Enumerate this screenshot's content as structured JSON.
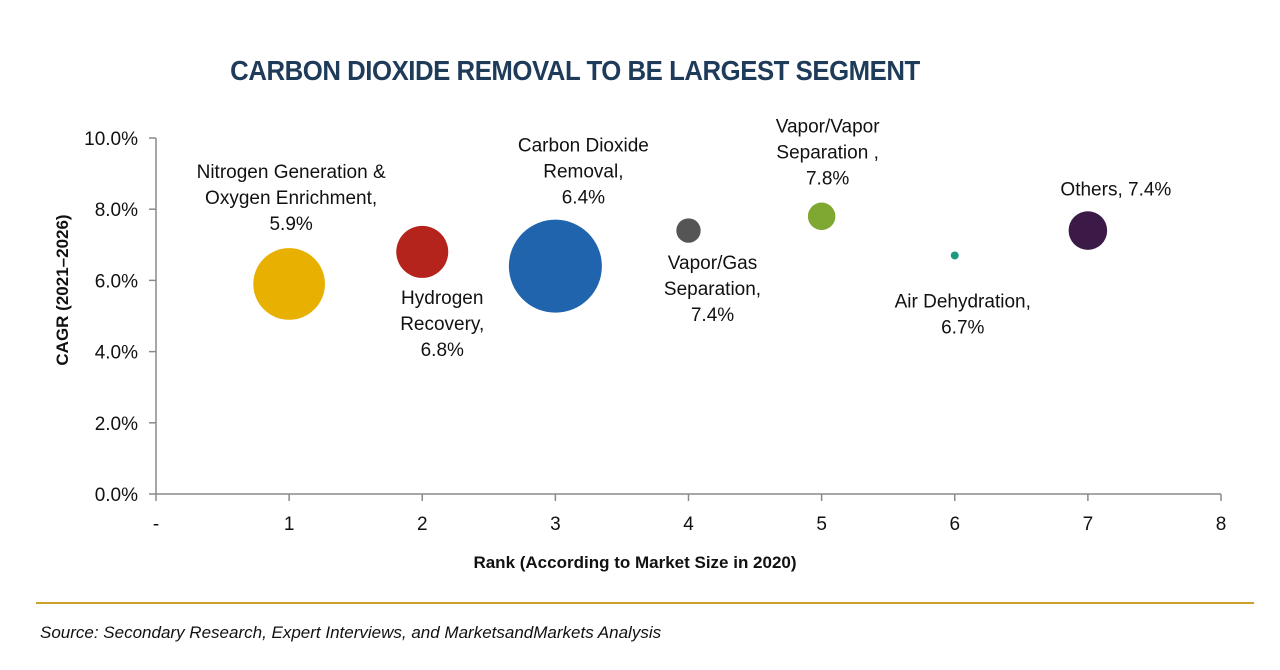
{
  "chart_data": {
    "type": "bubble",
    "title": "CARBON DIOXIDE REMOVAL TO BE LARGEST SEGMENT",
    "xlabel": "Rank (According to Market Size in 2020)",
    "ylabel": "CAGR (2021–2026)",
    "xlim": [
      0,
      8
    ],
    "ylim": [
      0,
      10
    ],
    "x_ticks": [
      {
        "value": 0,
        "label": "-"
      },
      {
        "value": 1,
        "label": "1"
      },
      {
        "value": 2,
        "label": "2"
      },
      {
        "value": 3,
        "label": "3"
      },
      {
        "value": 4,
        "label": "4"
      },
      {
        "value": 5,
        "label": "5"
      },
      {
        "value": 6,
        "label": "6"
      },
      {
        "value": 7,
        "label": "7"
      },
      {
        "value": 8,
        "label": "8"
      }
    ],
    "y_ticks": [
      {
        "value": 0,
        "label": "0.0%"
      },
      {
        "value": 2,
        "label": "2.0%"
      },
      {
        "value": 4,
        "label": "4.0%"
      },
      {
        "value": 6,
        "label": "6.0%"
      },
      {
        "value": 8,
        "label": "8.0%"
      },
      {
        "value": 10,
        "label": "10.0%"
      }
    ],
    "points": [
      {
        "name": "Nitrogen Generation & Oxygen Enrichment",
        "rank": 1,
        "cagr": 5.9,
        "size": 1.9,
        "color": "#e8b000",
        "label_lines": [
          "Nitrogen Generation &",
          "Oxygen Enrichment,",
          "5.9%"
        ],
        "label_pos": "above-left"
      },
      {
        "name": "Hydrogen Recovery",
        "rank": 2,
        "cagr": 6.8,
        "size": 1.0,
        "color": "#b5241c",
        "label_lines": [
          "Hydrogen",
          "Recovery,",
          "6.8%"
        ],
        "label_pos": "below-right"
      },
      {
        "name": "Carbon Dioxide Removal",
        "rank": 3,
        "cagr": 6.4,
        "size": 3.2,
        "color": "#2064ae",
        "label_lines": [
          "Carbon Dioxide",
          "Removal,",
          "6.4%"
        ],
        "label_pos": "above-right"
      },
      {
        "name": "Vapor/Gas Separation",
        "rank": 4,
        "cagr": 7.4,
        "size": 0.22,
        "color": "#555555",
        "label_lines": [
          "Vapor/Gas",
          "Separation,",
          "7.4%"
        ],
        "label_pos": "below-right"
      },
      {
        "name": "Vapor/Vapor Separation",
        "rank": 5,
        "cagr": 7.8,
        "size": 0.28,
        "color": "#7ea832",
        "label_lines": [
          "Vapor/Vapor",
          "Separation ,",
          "7.8%"
        ],
        "label_pos": "above"
      },
      {
        "name": "Air Dehydration",
        "rank": 6,
        "cagr": 6.7,
        "size": 0.02,
        "color": "#1a9a80",
        "label_lines": [
          "Air Dehydration,",
          "6.7%"
        ],
        "label_pos": "below"
      },
      {
        "name": "Others",
        "rank": 7,
        "cagr": 7.4,
        "size": 0.55,
        "color": "#3b1a48",
        "label_lines": [
          "Others, 7.4%"
        ],
        "label_pos": "above-right"
      }
    ]
  },
  "source": "Source: Secondary Research, Expert Interviews, and MarketsandMarkets Analysis"
}
